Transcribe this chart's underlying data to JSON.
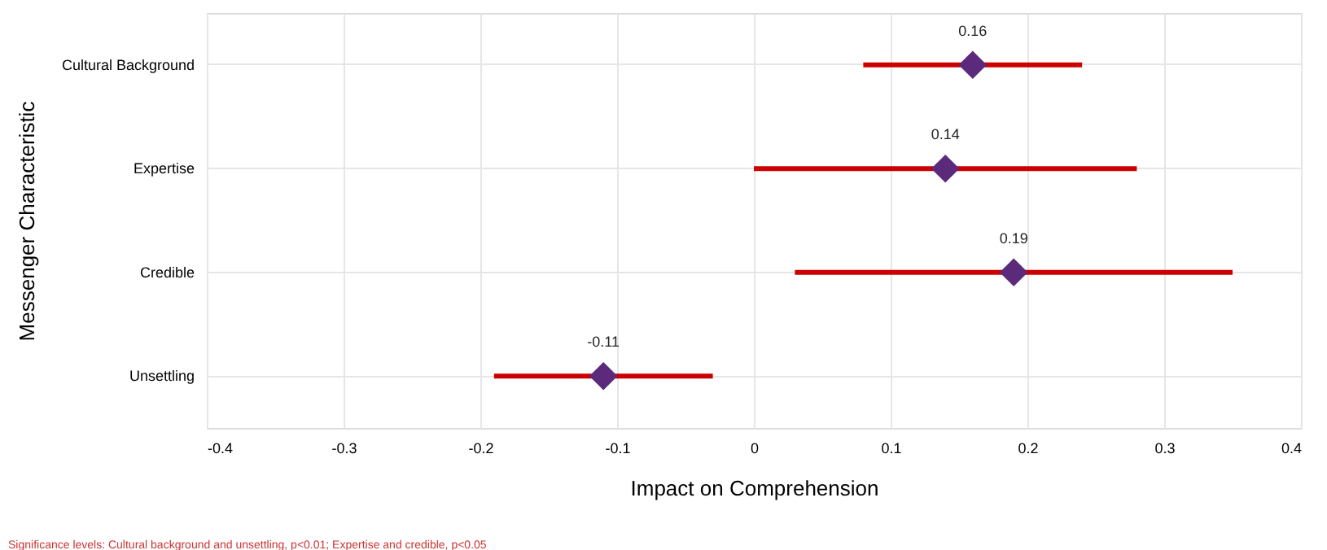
{
  "chart_data": {
    "type": "scatter",
    "orientation": "horizontal",
    "xlabel": "Impact on Comprehension",
    "ylabel": "Messenger Characteristic",
    "categories": [
      "Cultural Background",
      "Expertise",
      "Credible",
      "Unsettling"
    ],
    "series": [
      {
        "color": "#5b2a7a",
        "values": [
          0.16,
          0.14,
          0.19,
          -0.11
        ],
        "errors": [
          [
            0.08,
            0.24
          ],
          [
            0.0,
            0.28
          ],
          [
            0.03,
            0.35
          ],
          [
            -0.19,
            -0.03
          ]
        ]
      }
    ],
    "xlim": [
      -0.4,
      0.4
    ],
    "xticks": [
      -0.4,
      -0.3,
      -0.2,
      -0.1,
      0,
      0.1,
      0.2,
      0.3,
      0.4
    ],
    "grid": true,
    "marker": "diamond",
    "data_labels": true,
    "annotations": [
      "Significance levels: Cultural background and unsettling, p<0.01; Expertise and credible, p<0.05"
    ]
  }
}
